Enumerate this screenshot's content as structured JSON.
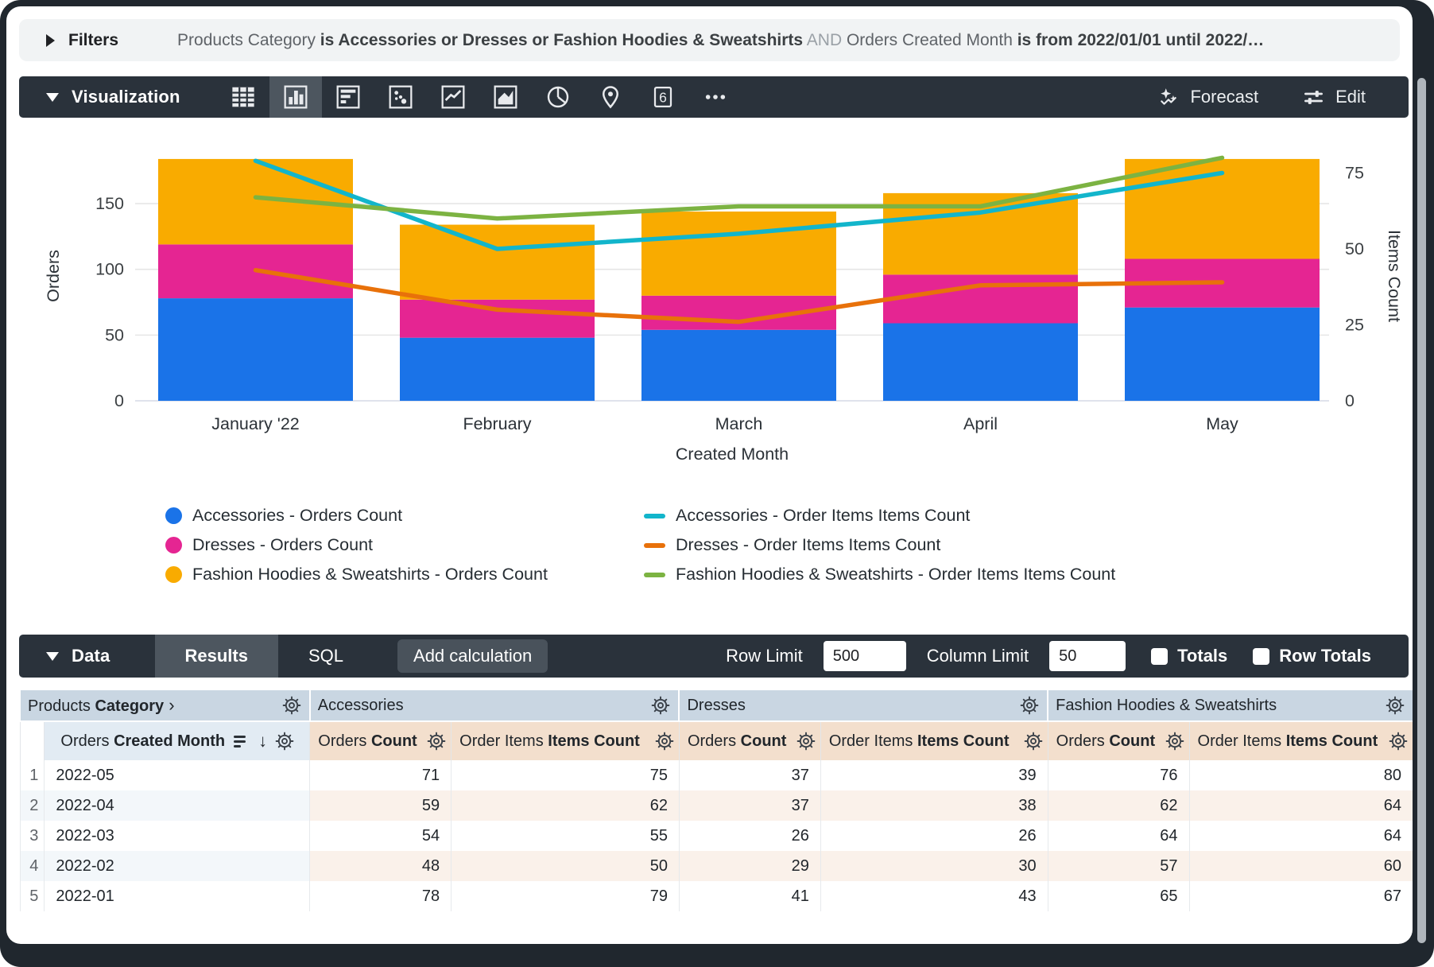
{
  "filters": {
    "label": "Filters",
    "parts": [
      {
        "text": "Products Category ",
        "style": "dim"
      },
      {
        "text": "is Accessories or Dresses or Fashion Hoodies & Sweatshirts",
        "style": "bold"
      },
      {
        "text": " AND ",
        "style": "faint"
      },
      {
        "text": "Orders Created Month ",
        "style": "dim"
      },
      {
        "text": "is from 2022/01/01 until 2022/…",
        "style": "bold"
      }
    ]
  },
  "viz_toolbar": {
    "title": "Visualization",
    "icons": [
      {
        "name": "table-viz-icon",
        "selected": false
      },
      {
        "name": "column-chart-icon",
        "selected": true
      },
      {
        "name": "bar-chart-icon",
        "selected": false
      },
      {
        "name": "scatter-chart-icon",
        "selected": false
      },
      {
        "name": "line-chart-icon",
        "selected": false
      },
      {
        "name": "area-chart-icon",
        "selected": false
      },
      {
        "name": "pie-chart-icon",
        "selected": false
      },
      {
        "name": "map-pin-icon",
        "selected": false
      },
      {
        "name": "single-value-icon",
        "selected": false,
        "glyph": "6"
      },
      {
        "name": "more-icon",
        "selected": false
      }
    ],
    "forecast_label": "Forecast",
    "edit_label": "Edit"
  },
  "chart_data": {
    "type": "combo (stacked bar + line, dual axis)",
    "categories": [
      "January '22",
      "February",
      "March",
      "April",
      "May"
    ],
    "x_axis_title": "Created Month",
    "left_axis": {
      "title": "Orders",
      "ticks": [
        0,
        50,
        100,
        150
      ],
      "max": 190
    },
    "right_axis": {
      "title": "Items Count",
      "ticks": [
        0,
        25,
        50,
        75
      ],
      "max": 82.2
    },
    "grid": true,
    "legend_position": "bottom",
    "bar_series": [
      {
        "name": "Accessories - Orders Count",
        "color": "#1A73E8",
        "values": [
          78,
          48,
          54,
          59,
          71
        ]
      },
      {
        "name": "Dresses - Orders Count",
        "color": "#E52592",
        "values": [
          41,
          29,
          26,
          37,
          37
        ]
      },
      {
        "name": "Fashion Hoodies & Sweatshirts - Orders Count",
        "color": "#F9AB00",
        "values": [
          65,
          57,
          64,
          62,
          76
        ]
      }
    ],
    "line_series": [
      {
        "name": "Accessories - Order Items Items Count",
        "color": "#12B5CB",
        "values": [
          79,
          50,
          55,
          62,
          75
        ]
      },
      {
        "name": "Dresses - Order Items Items Count",
        "color": "#E8710A",
        "values": [
          43,
          30,
          26,
          38,
          39
        ]
      },
      {
        "name": "Fashion Hoodies & Sweatshirts - Order Items Items Count",
        "color": "#7CB342",
        "values": [
          67,
          60,
          64,
          64,
          80
        ]
      }
    ]
  },
  "data_toolbar": {
    "title": "Data",
    "tabs": [
      {
        "label": "Results",
        "active": true
      },
      {
        "label": "SQL",
        "active": false
      }
    ],
    "add_calculation_label": "Add calculation",
    "row_limit_label": "Row Limit",
    "row_limit_value": "500",
    "column_limit_label": "Column Limit",
    "column_limit_value": "50",
    "totals_label": "Totals",
    "row_totals_label": "Row Totals",
    "totals_checked": false,
    "row_totals_checked": false
  },
  "table": {
    "dimension_group": {
      "prefix": "Products ",
      "bold": "Category",
      "chevron": "›"
    },
    "groups": [
      "Accessories",
      "Dresses",
      "Fashion Hoodies & Sweatshirts"
    ],
    "dimension_header": {
      "prefix": "Orders ",
      "bold": "Created Month"
    },
    "measure_header_orders": {
      "prefix": "Orders ",
      "bold": "Count"
    },
    "measure_header_items": {
      "prefix": "Order Items ",
      "bold": "Items Count"
    },
    "rows": [
      {
        "n": "1",
        "month": "2022-05",
        "values": [
          "71",
          "75",
          "37",
          "39",
          "76",
          "80"
        ]
      },
      {
        "n": "2",
        "month": "2022-04",
        "values": [
          "59",
          "62",
          "37",
          "38",
          "62",
          "64"
        ]
      },
      {
        "n": "3",
        "month": "2022-03",
        "values": [
          "54",
          "55",
          "26",
          "26",
          "64",
          "64"
        ]
      },
      {
        "n": "4",
        "month": "2022-02",
        "values": [
          "48",
          "50",
          "29",
          "30",
          "57",
          "60"
        ]
      },
      {
        "n": "5",
        "month": "2022-01",
        "values": [
          "78",
          "79",
          "41",
          "43",
          "65",
          "67"
        ]
      }
    ]
  },
  "colors": {
    "toolbar_bg": "#2a323b",
    "chip_selected_bg": "#4d565f",
    "filter_bar_bg": "#f1f3f4",
    "group_header_bg": "#c9d6e2",
    "dim_subheader_bg": "#e2ebf3",
    "measure_subheader_bg": "#f3dfcd",
    "dim_stripe_bg": "#f3f7fa",
    "measure_stripe_bg": "#faf1ea"
  }
}
